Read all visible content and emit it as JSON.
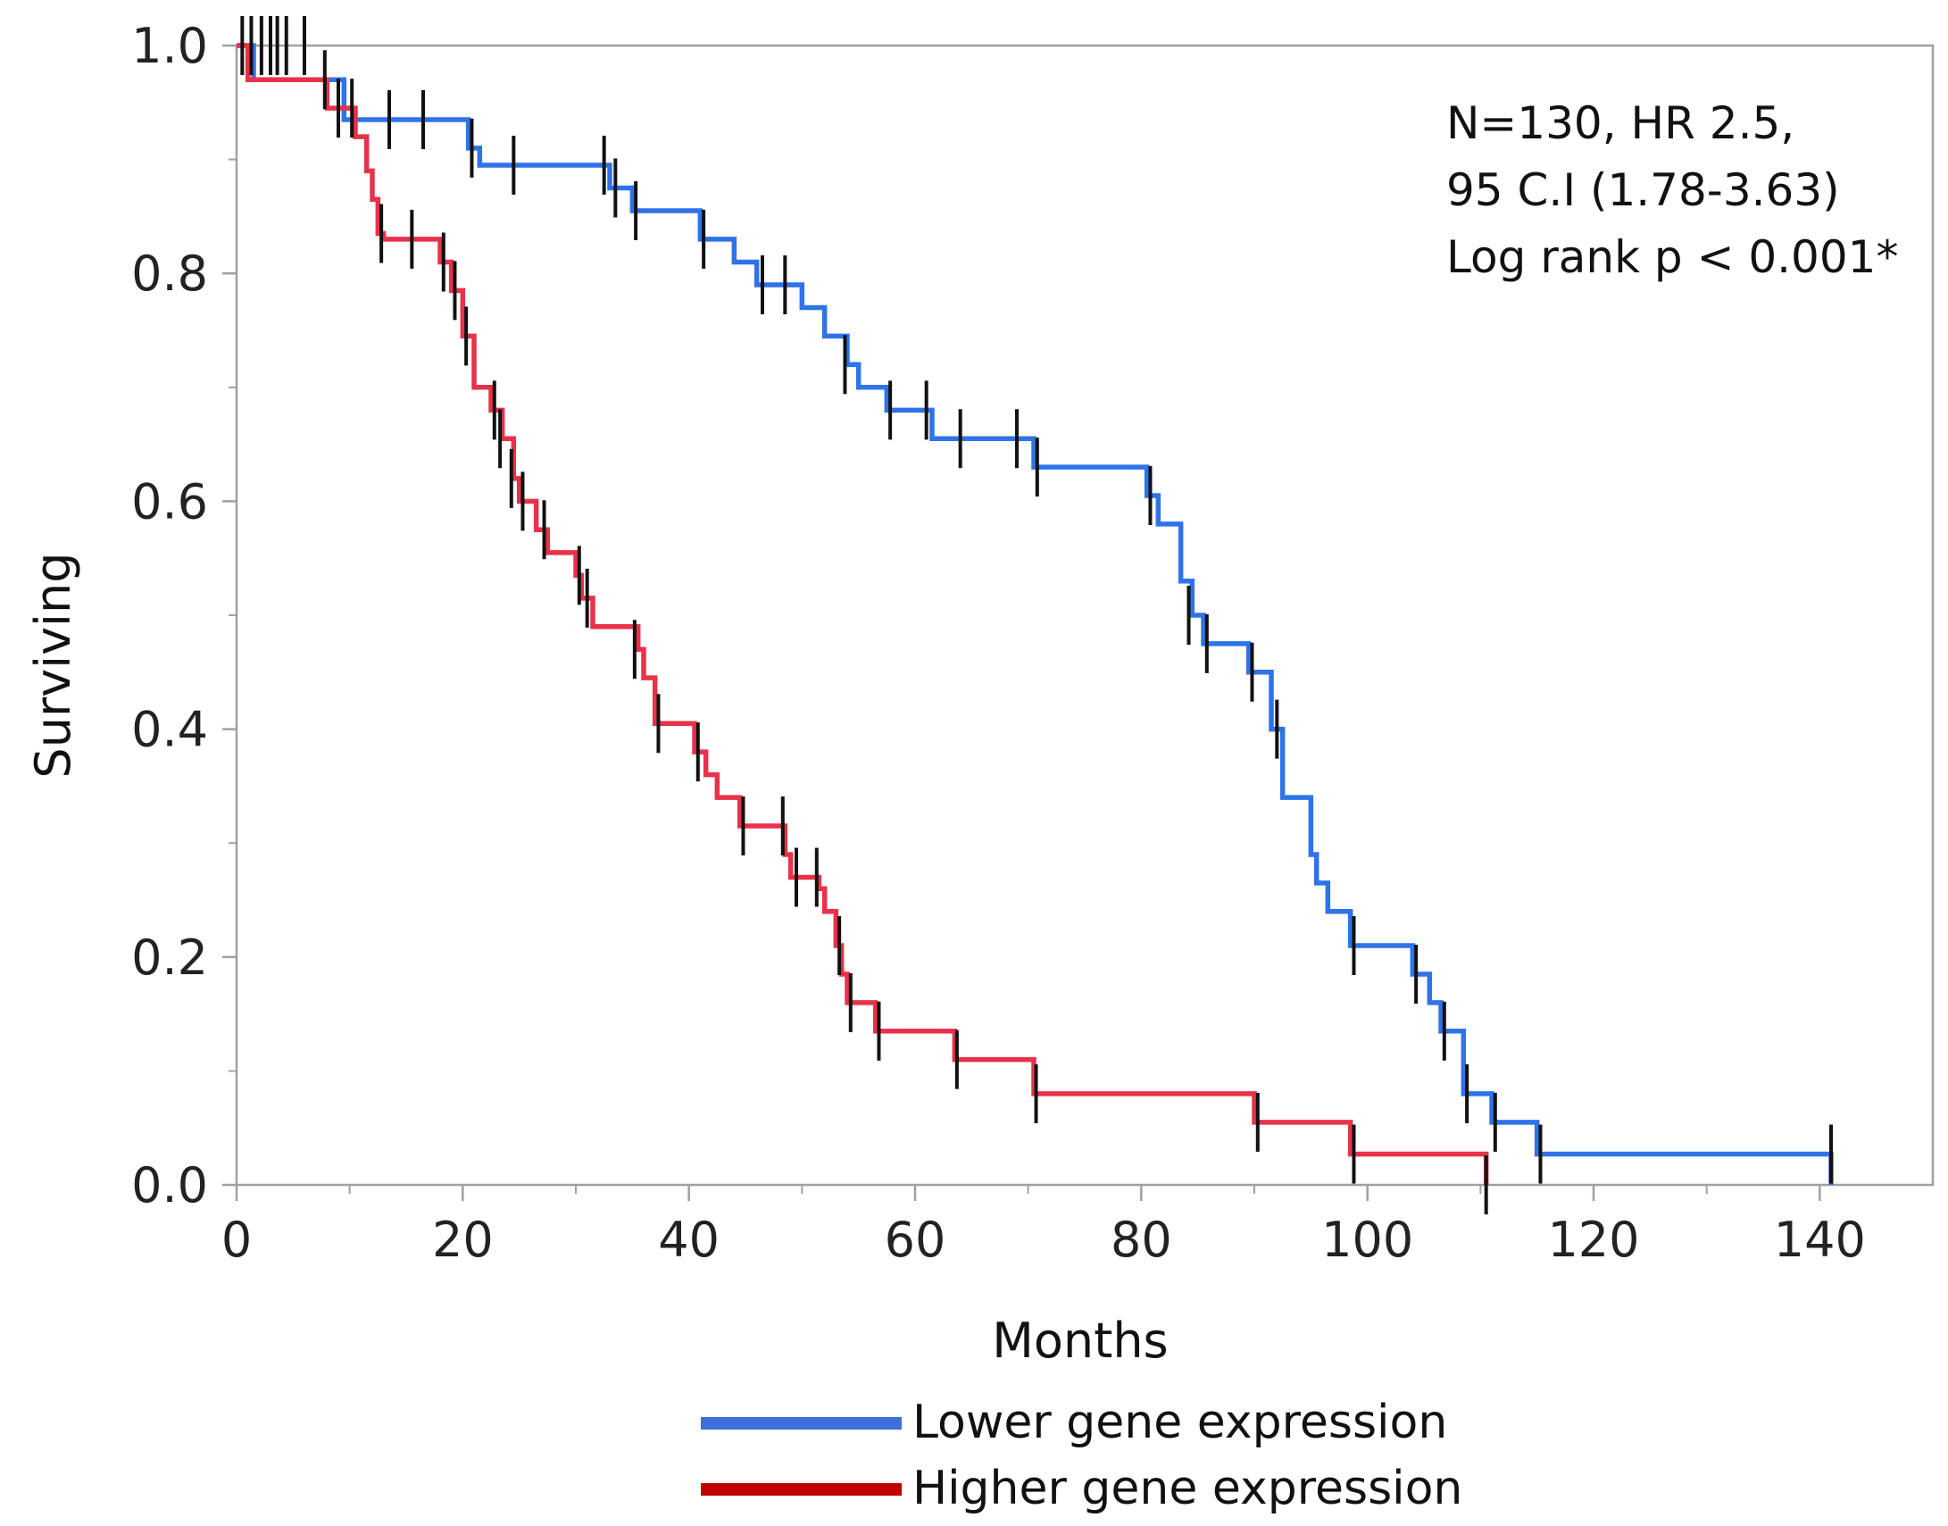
{
  "chart_data": {
    "type": "line",
    "subtype": "kaplan-meier-step",
    "title": "",
    "xlabel": "Months",
    "ylabel": "Surviving",
    "xlim": [
      0,
      150
    ],
    "ylim": [
      0,
      1
    ],
    "x_ticks": [
      0,
      20,
      40,
      60,
      80,
      100,
      120,
      140
    ],
    "x_tick_labels": [
      "0",
      "20",
      "40",
      "60",
      "80",
      "100",
      "120",
      "140"
    ],
    "y_ticks": [
      0,
      0.2,
      0.4,
      0.6,
      0.8,
      1.0
    ],
    "y_tick_labels": [
      "0.0",
      "0.2",
      "0.4",
      "0.6",
      "0.8",
      "1.0"
    ],
    "grid": false,
    "legend_position": "bottom-center",
    "annotations": [
      "N=130, HR 2.5,",
      "95 C.I (1.78-3.63)",
      "Log rank p < 0.001*"
    ],
    "censor_mark_color": "#111111",
    "series": [
      {
        "name": "Lower gene expression",
        "color": "#2f73e8",
        "legend_color": "#3e6fd8",
        "steps": [
          [
            0,
            1.0
          ],
          [
            1.5,
            0.97
          ],
          [
            9.5,
            0.935
          ],
          [
            20.5,
            0.91
          ],
          [
            21.5,
            0.895
          ],
          [
            33,
            0.875
          ],
          [
            35,
            0.855
          ],
          [
            41,
            0.83
          ],
          [
            44,
            0.81
          ],
          [
            46,
            0.79
          ],
          [
            50,
            0.77
          ],
          [
            52,
            0.745
          ],
          [
            54,
            0.72
          ],
          [
            55,
            0.7
          ],
          [
            57.5,
            0.68
          ],
          [
            61.5,
            0.655
          ],
          [
            70.5,
            0.63
          ],
          [
            80.5,
            0.605
          ],
          [
            81.5,
            0.58
          ],
          [
            83.5,
            0.53
          ],
          [
            84.5,
            0.5
          ],
          [
            85.5,
            0.475
          ],
          [
            89.5,
            0.45
          ],
          [
            91.5,
            0.4
          ],
          [
            92.5,
            0.34
          ],
          [
            95,
            0.29
          ],
          [
            95.5,
            0.265
          ],
          [
            96.5,
            0.24
          ],
          [
            98.5,
            0.21
          ],
          [
            104,
            0.185
          ],
          [
            105.5,
            0.16
          ],
          [
            106.5,
            0.135
          ],
          [
            108.5,
            0.08
          ],
          [
            111,
            0.055
          ],
          [
            115,
            0.027
          ],
          [
            141,
            0.0
          ]
        ],
        "censored": [
          [
            0.5,
            1.0
          ],
          [
            1.3,
            1.0
          ],
          [
            2.2,
            1.0
          ],
          [
            3.0,
            1.0
          ],
          [
            3.6,
            1.0
          ],
          [
            4.4,
            1.0
          ],
          [
            6.0,
            1.0
          ],
          [
            13.5,
            0.935
          ],
          [
            16.5,
            0.935
          ],
          [
            20.8,
            0.91
          ],
          [
            24.5,
            0.895
          ],
          [
            32.5,
            0.895
          ],
          [
            33.5,
            0.875
          ],
          [
            35.3,
            0.855
          ],
          [
            41.3,
            0.83
          ],
          [
            46.5,
            0.79
          ],
          [
            48.5,
            0.79
          ],
          [
            53.8,
            0.72
          ],
          [
            57.8,
            0.68
          ],
          [
            61,
            0.68
          ],
          [
            64,
            0.655
          ],
          [
            69,
            0.655
          ],
          [
            70.8,
            0.63
          ],
          [
            80.8,
            0.605
          ],
          [
            84.2,
            0.5
          ],
          [
            85.8,
            0.475
          ],
          [
            89.8,
            0.45
          ],
          [
            92,
            0.4
          ],
          [
            98.8,
            0.21
          ],
          [
            104.3,
            0.185
          ],
          [
            106.8,
            0.135
          ],
          [
            108.8,
            0.08
          ],
          [
            111.3,
            0.055
          ],
          [
            115.3,
            0.027
          ],
          [
            141,
            0.027
          ]
        ]
      },
      {
        "name": "Higher gene expression",
        "color": "#e8324a",
        "legend_color": "#c00000",
        "steps": [
          [
            0,
            1.0
          ],
          [
            1.0,
            0.97
          ],
          [
            8.0,
            0.945
          ],
          [
            10.5,
            0.92
          ],
          [
            11.5,
            0.89
          ],
          [
            12.0,
            0.865
          ],
          [
            12.5,
            0.835
          ],
          [
            13.0,
            0.83
          ],
          [
            18.0,
            0.81
          ],
          [
            19.0,
            0.785
          ],
          [
            20.0,
            0.745
          ],
          [
            21.0,
            0.7
          ],
          [
            22.5,
            0.68
          ],
          [
            23.5,
            0.655
          ],
          [
            24.5,
            0.62
          ],
          [
            25.0,
            0.6
          ],
          [
            26.5,
            0.575
          ],
          [
            27.5,
            0.555
          ],
          [
            30.0,
            0.535
          ],
          [
            30.5,
            0.515
          ],
          [
            31.5,
            0.49
          ],
          [
            35.5,
            0.47
          ],
          [
            36.0,
            0.445
          ],
          [
            37.0,
            0.405
          ],
          [
            40.5,
            0.38
          ],
          [
            41.5,
            0.36
          ],
          [
            42.5,
            0.34
          ],
          [
            44.5,
            0.315
          ],
          [
            48.5,
            0.29
          ],
          [
            49.0,
            0.27
          ],
          [
            51.5,
            0.26
          ],
          [
            52.0,
            0.24
          ],
          [
            53.0,
            0.21
          ],
          [
            53.5,
            0.185
          ],
          [
            54.0,
            0.16
          ],
          [
            56.5,
            0.135
          ],
          [
            63.5,
            0.11
          ],
          [
            70.5,
            0.08
          ],
          [
            90.0,
            0.055
          ],
          [
            98.5,
            0.027
          ],
          [
            110.5,
            0.0
          ]
        ],
        "censored": [
          [
            7.8,
            0.97
          ],
          [
            9.0,
            0.945
          ],
          [
            10.2,
            0.945
          ],
          [
            12.8,
            0.835
          ],
          [
            15.5,
            0.83
          ],
          [
            18.3,
            0.81
          ],
          [
            19.3,
            0.785
          ],
          [
            20.3,
            0.745
          ],
          [
            22.8,
            0.68
          ],
          [
            23.3,
            0.655
          ],
          [
            24.3,
            0.62
          ],
          [
            25.3,
            0.6
          ],
          [
            27.2,
            0.575
          ],
          [
            30.3,
            0.535
          ],
          [
            31.0,
            0.515
          ],
          [
            35.2,
            0.47
          ],
          [
            37.3,
            0.405
          ],
          [
            40.8,
            0.38
          ],
          [
            44.8,
            0.315
          ],
          [
            48.3,
            0.315
          ],
          [
            49.5,
            0.27
          ],
          [
            51.3,
            0.27
          ],
          [
            53.3,
            0.21
          ],
          [
            54.3,
            0.16
          ],
          [
            56.8,
            0.135
          ],
          [
            63.7,
            0.11
          ],
          [
            70.7,
            0.08
          ],
          [
            90.3,
            0.055
          ],
          [
            98.8,
            0.027
          ],
          [
            110.5,
            0.0
          ]
        ]
      }
    ]
  }
}
